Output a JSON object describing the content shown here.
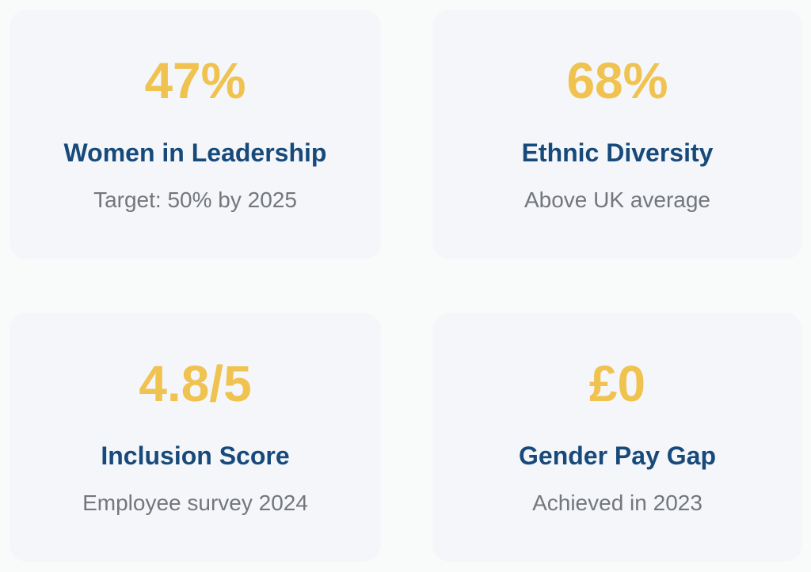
{
  "theme": {
    "page_background": "#F9FBFA",
    "card_background": "#F4F6FA",
    "accent_gold": "#F0C24F",
    "title_navy": "#174A7B",
    "subtitle_gray": "#73767A"
  },
  "cards": [
    {
      "value": "47%",
      "title": "Women in Leadership",
      "subtitle": "Target: 50% by 2025"
    },
    {
      "value": "68%",
      "title": "Ethnic Diversity",
      "subtitle": "Above UK average"
    },
    {
      "value": "4.8/5",
      "title": "Inclusion Score",
      "subtitle": "Employee survey 2024"
    },
    {
      "value": "£0",
      "title": "Gender Pay Gap",
      "subtitle": "Achieved in 2023"
    }
  ]
}
